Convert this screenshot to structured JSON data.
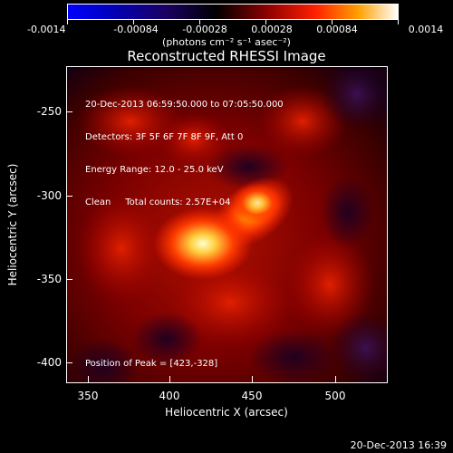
{
  "colorbar": {
    "ticks": [
      "-0.0014",
      "-0.00084",
      "-0.00028",
      "0.00028",
      "0.00084",
      "0.0014"
    ],
    "units": "(photons cm⁻² s⁻¹ asec⁻²)"
  },
  "title": "Reconstructed RHESSI Image",
  "info": {
    "line1": "20-Dec-2013 06:59:50.000 to 07:05:50.000",
    "line2": "Detectors: 3F 5F 6F 7F 8F 9F, Att 0",
    "line3": "Energy Range: 12.0 - 25.0 keV",
    "line4": "Clean     Total counts: 2.57E+04"
  },
  "peak": "Position of Peak = [423,-328]",
  "axes": {
    "xlabel": "Heliocentric X (arcsec)",
    "ylabel": "Heliocentric Y (arcsec)",
    "xticks": [
      "350",
      "400",
      "450",
      "500"
    ],
    "yticks": [
      "-250",
      "-300",
      "-350",
      "-400"
    ]
  },
  "timestamp": "20-Dec-2013 16:39"
}
